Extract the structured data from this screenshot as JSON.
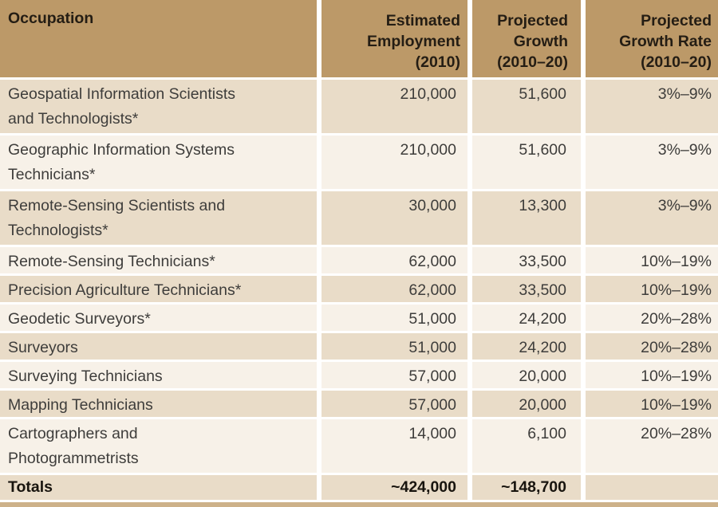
{
  "table": {
    "columns": [
      {
        "label": "Occupation"
      },
      {
        "label": "Estimated\nEmployment\n(2010)"
      },
      {
        "label": "Projected\nGrowth\n(2010–20)"
      },
      {
        "label": "Projected\nGrowth Rate\n(2010–20)"
      }
    ],
    "rows": [
      {
        "occupation": "Geospatial Information Scientists\nand Technologists*",
        "employment": "210,000",
        "growth": "51,600",
        "rate": "3%–9%"
      },
      {
        "occupation": "Geographic Information Systems\nTechnicians*",
        "employment": "210,000",
        "growth": "51,600",
        "rate": "3%–9%"
      },
      {
        "occupation": "Remote-Sensing Scientists and\nTechnologists*",
        "employment": "30,000",
        "growth": "13,300",
        "rate": "3%–9%"
      },
      {
        "occupation": "Remote-Sensing Technicians*",
        "employment": "62,000",
        "growth": "33,500",
        "rate": "10%–19%"
      },
      {
        "occupation": "Precision Agriculture Technicians*",
        "employment": "62,000",
        "growth": "33,500",
        "rate": "10%–19%"
      },
      {
        "occupation": "Geodetic Surveyors*",
        "employment": "51,000",
        "growth": "24,200",
        "rate": "20%–28%"
      },
      {
        "occupation": "Surveyors",
        "employment": "51,000",
        "growth": "24,200",
        "rate": "20%–28%"
      },
      {
        "occupation": "Surveying Technicians",
        "employment": "57,000",
        "growth": "20,000",
        "rate": "10%–19%"
      },
      {
        "occupation": "Mapping Technicians",
        "employment": "57,000",
        "growth": "20,000",
        "rate": "10%–19%"
      },
      {
        "occupation": "Cartographers and\nPhotogrammetrists",
        "employment": "14,000",
        "growth": "6,100",
        "rate": "20%–28%"
      }
    ],
    "totals": {
      "label": "Totals",
      "employment": "~424,000",
      "growth": "~148,700",
      "rate": ""
    }
  },
  "colors": {
    "header_bg": "#bc9968",
    "header_text": "#241d14",
    "row_dark": "#e9dcc8",
    "row_light": "#f7f1e8",
    "body_text": "#3e3d3b",
    "totals_text": "#18140e",
    "bottom_band": "#cdb189"
  }
}
